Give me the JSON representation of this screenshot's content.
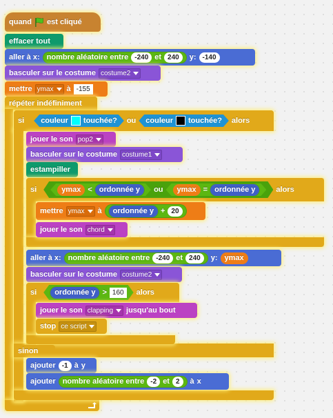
{
  "script": {
    "hat": {
      "label1": "quand",
      "label2": "est cliqué",
      "icon": "green-flag-icon"
    },
    "clear": "effacer tout",
    "goto1": {
      "prefix": "aller à x:",
      "rand_label": "nombre aléatoire entre",
      "from": "-240",
      "and": "et",
      "to": "240",
      "y_label": "y:",
      "y": "-140"
    },
    "costume1": {
      "label": "basculer sur le costume",
      "value": "costume2"
    },
    "set1": {
      "label": "mettre",
      "var": "ymax",
      "to": "à",
      "value": "-155"
    },
    "forever": "répéter indéfiniment",
    "if1": {
      "si": "si",
      "left": {
        "a": "couleur",
        "b": "touchée?",
        "color": "#00ffff"
      },
      "ou": "ou",
      "right": {
        "a": "couleur",
        "b": "touchée?",
        "color": "#000000"
      },
      "alors": "alors"
    },
    "play1": {
      "label": "jouer le son",
      "value": "pop2"
    },
    "costume2": {
      "label": "basculer sur le costume",
      "value": "costume1"
    },
    "stamp": "estampiller",
    "if2": {
      "si": "si",
      "lt": "<",
      "ou": "ou",
      "eq": "=",
      "ymax": "ymax",
      "ordonnee": "ordonnée y",
      "alors": "alors"
    },
    "set2": {
      "label": "mettre",
      "var": "ymax",
      "to": "à",
      "ordonnee": "ordonnée y",
      "plus": "+",
      "value": "20"
    },
    "play2": {
      "label": "jouer le son",
      "value": "chord"
    },
    "goto2": {
      "prefix": "aller à x:",
      "rand_label": "nombre aléatoire entre",
      "from": "-240",
      "and": "et",
      "to": "240",
      "y_label": "y:",
      "y": "ymax"
    },
    "costume3": {
      "label": "basculer sur le costume",
      "value": "costume2"
    },
    "if3": {
      "si": "si",
      "ordonnee": "ordonnée y",
      "gt": ">",
      "value": "160",
      "alors": "alors"
    },
    "play3": {
      "label": "jouer le son",
      "value": "clapping",
      "suffix": "jusqu'au bout"
    },
    "stop": {
      "label": "stop",
      "value": "ce script"
    },
    "else": "sinon",
    "change": {
      "label": "ajouter",
      "value": "-1",
      "to": "à",
      "var": "y"
    },
    "change2": {
      "label": "ajouter",
      "rand_label": "nombre aléatoire entre",
      "from": "-2",
      "and": "et",
      "to": "2",
      "to_label": "à",
      "var": "x"
    },
    "loop_icon": "loop-arrow-icon"
  }
}
